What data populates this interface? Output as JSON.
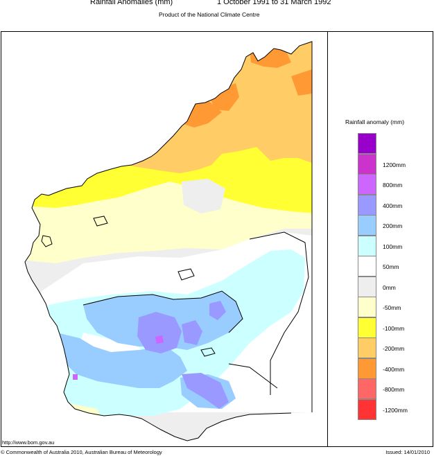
{
  "header": {
    "title": "Rainfall Anomalies (mm)",
    "period": "1 October 1991 to 31 March 1992",
    "subtitle": "Product of the National Climate Centre"
  },
  "legend": {
    "title": "Rainfall anomaly (mm)",
    "items": [
      {
        "label": "",
        "color": "#9900cc"
      },
      {
        "label": "1200mm",
        "color": "#cc33cc"
      },
      {
        "label": "800mm",
        "color": "#cc66ff"
      },
      {
        "label": "400mm",
        "color": "#9999ff"
      },
      {
        "label": "200mm",
        "color": "#99ccff"
      },
      {
        "label": "100mm",
        "color": "#ccffff"
      },
      {
        "label": "50mm",
        "color": "#ffffff"
      },
      {
        "label": "0mm",
        "color": "#eeeeee"
      },
      {
        "label": "-50mm",
        "color": "#ffffcc"
      },
      {
        "label": "-100mm",
        "color": "#ffff33"
      },
      {
        "label": "-200mm",
        "color": "#ffcc66"
      },
      {
        "label": "-400mm",
        "color": "#ff9933"
      },
      {
        "label": "-800mm",
        "color": "#ff6666"
      },
      {
        "label": "-1200mm",
        "color": "#ff3333"
      }
    ]
  },
  "footer": {
    "url": "http://www.bom.gov.au",
    "copyright": "© Commonwealth of Australia 2010, Australian Bureau of Meteorology",
    "issued": "Issued: 14/01/2010"
  }
}
